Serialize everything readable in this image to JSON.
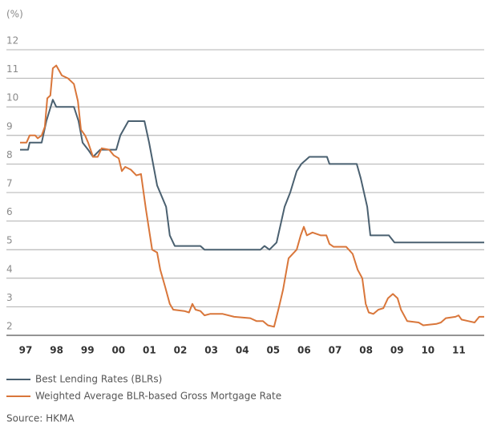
{
  "chart_data": {
    "type": "line",
    "y_label": "(%)",
    "source": "Source: HKMA",
    "xlim": [
      1997,
      2012
    ],
    "xticks": [
      {
        "value": 1997,
        "label": "97"
      },
      {
        "value": 1998,
        "label": "98"
      },
      {
        "value": 1999,
        "label": "99"
      },
      {
        "value": 2000,
        "label": "00"
      },
      {
        "value": 2001,
        "label": "01"
      },
      {
        "value": 2002,
        "label": "02"
      },
      {
        "value": 2003,
        "label": "03"
      },
      {
        "value": 2004,
        "label": "04"
      },
      {
        "value": 2005,
        "label": "05"
      },
      {
        "value": 2006,
        "label": "06"
      },
      {
        "value": 2007,
        "label": "07"
      },
      {
        "value": 2008,
        "label": "08"
      },
      {
        "value": 2009,
        "label": "09"
      },
      {
        "value": 2010,
        "label": "10"
      },
      {
        "value": 2011,
        "label": "11"
      }
    ],
    "ylim": [
      2,
      12
    ],
    "yticks": [
      2,
      3,
      4,
      5,
      6,
      7,
      8,
      9,
      10,
      11,
      12
    ],
    "grid": true,
    "series": [
      {
        "name": "Best Lending Rates (BLRs)",
        "color": "#4a6070",
        "x": [
          1997.0,
          1997.26,
          1997.31,
          1997.7,
          1997.85,
          1998.06,
          1998.17,
          1998.74,
          1998.89,
          1999.02,
          1999.2,
          1999.36,
          1999.59,
          2000.11,
          2000.24,
          2000.5,
          2001.02,
          2001.17,
          2001.43,
          2001.72,
          2001.84,
          2002.0,
          2002.83,
          2002.96,
          2004.77,
          2004.9,
          2005.06,
          2005.29,
          2005.55,
          2005.73,
          2005.94,
          2006.09,
          2006.35,
          2006.92,
          2007.0,
          2007.88,
          2008.01,
          2008.22,
          2008.32,
          2008.92,
          2009.1,
          2012.0
        ],
        "values": [
          8.5,
          8.5,
          8.75,
          8.75,
          9.5,
          10.25,
          10.0,
          10.0,
          9.5,
          8.75,
          8.5,
          8.25,
          8.5,
          8.5,
          9.0,
          9.5,
          9.5,
          8.75,
          7.25,
          6.5,
          5.5,
          5.13,
          5.13,
          5.0,
          5.0,
          5.13,
          5.0,
          5.25,
          6.5,
          7.0,
          7.75,
          8.0,
          8.25,
          8.25,
          8.0,
          8.0,
          7.5,
          6.5,
          5.5,
          5.5,
          5.25,
          5.25
        ]
      },
      {
        "name": "Weighted Average BLR-based Gross Mortgage Rate",
        "color": "#d9763a",
        "x": [
          1997.0,
          1997.21,
          1997.31,
          1997.49,
          1997.57,
          1997.7,
          1997.8,
          1997.88,
          1997.98,
          1998.06,
          1998.17,
          1998.35,
          1998.55,
          1998.74,
          1998.87,
          1998.97,
          1999.1,
          1999.2,
          1999.36,
          1999.51,
          1999.64,
          1999.88,
          2000.03,
          2000.19,
          2000.29,
          2000.4,
          2000.58,
          2000.76,
          2000.91,
          2001.07,
          2001.27,
          2001.43,
          2001.53,
          2001.69,
          2001.84,
          2001.95,
          2002.31,
          2002.46,
          2002.57,
          2002.67,
          2002.83,
          2002.96,
          2003.14,
          2003.55,
          2003.92,
          2004.44,
          2004.64,
          2004.85,
          2005.01,
          2005.21,
          2005.37,
          2005.5,
          2005.68,
          2005.94,
          2006.07,
          2006.17,
          2006.27,
          2006.45,
          2006.72,
          2006.9,
          2007.0,
          2007.13,
          2007.54,
          2007.75,
          2007.91,
          2008.06,
          2008.17,
          2008.27,
          2008.42,
          2008.58,
          2008.74,
          2008.89,
          2009.05,
          2009.2,
          2009.31,
          2009.51,
          2009.88,
          2010.03,
          2010.45,
          2010.6,
          2010.76,
          2011.07,
          2011.17,
          2011.27,
          2011.48,
          2011.69,
          2011.84,
          2012.0
        ],
        "values": [
          8.75,
          8.75,
          9.0,
          9.0,
          8.9,
          9.0,
          9.3,
          10.3,
          10.4,
          11.35,
          11.45,
          11.1,
          11.0,
          10.8,
          10.2,
          9.2,
          9.0,
          8.75,
          8.25,
          8.25,
          8.55,
          8.5,
          8.3,
          8.2,
          7.75,
          7.9,
          7.8,
          7.6,
          7.65,
          6.4,
          5.0,
          4.9,
          4.3,
          3.7,
          3.1,
          2.9,
          2.85,
          2.8,
          3.1,
          2.9,
          2.85,
          2.7,
          2.75,
          2.75,
          2.65,
          2.6,
          2.5,
          2.5,
          2.35,
          2.3,
          3.0,
          3.6,
          4.7,
          5.0,
          5.5,
          5.8,
          5.5,
          5.6,
          5.5,
          5.5,
          5.2,
          5.1,
          5.1,
          4.85,
          4.3,
          4.0,
          3.1,
          2.8,
          2.75,
          2.9,
          2.95,
          3.3,
          3.45,
          3.3,
          2.9,
          2.5,
          2.45,
          2.35,
          2.4,
          2.45,
          2.6,
          2.65,
          2.7,
          2.55,
          2.5,
          2.45,
          2.65,
          2.65
        ]
      }
    ]
  }
}
